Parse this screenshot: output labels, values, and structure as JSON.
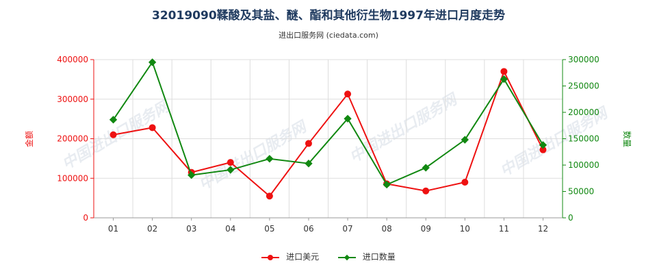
{
  "chart_data": {
    "type": "line",
    "title": "32019090鞣酸及其盐、醚、酯和其他衍生物1997年进口月度走势",
    "subtitle": "进出口服务网 (ciedata.com)",
    "categories": [
      "01",
      "02",
      "03",
      "04",
      "05",
      "06",
      "07",
      "08",
      "09",
      "10",
      "11",
      "12"
    ],
    "y_left": {
      "label": "金额",
      "range": [
        0,
        400000
      ],
      "ticks": [
        "0",
        "100000",
        "200000",
        "300000",
        "400000"
      ]
    },
    "y_right": {
      "label": "数量",
      "range": [
        0,
        300000
      ],
      "ticks": [
        "0",
        "50000",
        "100000",
        "150000",
        "200000",
        "250000",
        "300000"
      ]
    },
    "grid": true,
    "legend_position": "bottom",
    "series": [
      {
        "name": "进口美元",
        "axis": "left",
        "color": "#ee1111",
        "values": [
          210000,
          228000,
          115000,
          140000,
          55000,
          188000,
          313000,
          86000,
          68000,
          90000,
          370000,
          172000
        ]
      },
      {
        "name": "进口数量",
        "axis": "right",
        "color": "#118811",
        "values": [
          186000,
          295000,
          81000,
          91000,
          112000,
          103000,
          188000,
          63000,
          95000,
          148000,
          263000,
          138000
        ]
      }
    ]
  },
  "watermark_text": "中国进出口服务网"
}
